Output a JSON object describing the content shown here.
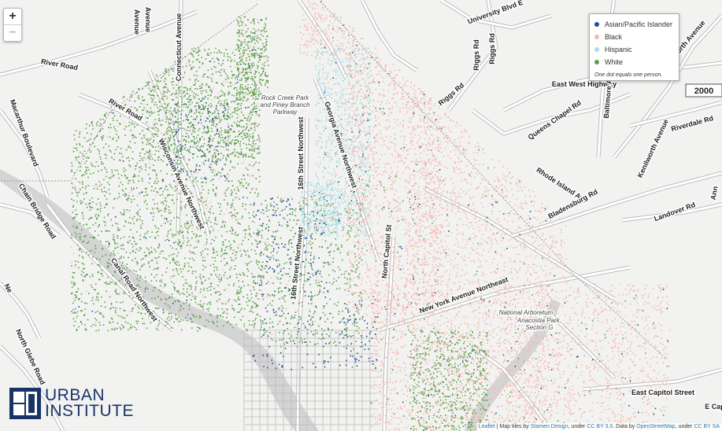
{
  "map": {
    "colors": {
      "land": "#f2f2f0",
      "water": "#d4d4d4",
      "road": "#ffffff",
      "road_casing": "#bdbdbd",
      "major_road": "#ffffff"
    },
    "roads": [
      {
        "text": "River Road",
        "rot": 10
      },
      {
        "text": "River Road",
        "rot": 30
      },
      {
        "text": "Connecticut Avenue",
        "rot": -90
      },
      {
        "text": "Macarthur Boulevard",
        "rot": 70
      },
      {
        "text": "Wisconsin Avenue Northwest",
        "rot": 65
      },
      {
        "text": "Chain Bridge Road",
        "rot": 58
      },
      {
        "text": "Canal Road Northwest",
        "rot": 55
      },
      {
        "text": "16th Street Northwest",
        "rot": -90
      },
      {
        "text": "16th Street Northwest",
        "rot": -84
      },
      {
        "text": "Georgia Avenue Northwest",
        "rot": 72
      },
      {
        "text": "North Capitol St",
        "rot": -85
      },
      {
        "text": "New York Avenue Northeast",
        "rot": -20
      },
      {
        "text": "Rhode Island Ave",
        "rot": 33
      },
      {
        "text": "Bladensburg Rd",
        "rot": -28
      },
      {
        "text": "Riggs Rd",
        "rot": -40
      },
      {
        "text": "Riggs Rd",
        "rot": -90
      },
      {
        "text": "Riggs Rd",
        "rot": -90
      },
      {
        "text": "University Blvd E",
        "rot": -20
      },
      {
        "text": "East West Highway",
        "rot": 0
      },
      {
        "text": "Queens Chapel Rd",
        "rot": -35
      },
      {
        "text": "Baltimore Avenue",
        "rot": -85
      },
      {
        "text": "Kenilworth Avenue",
        "rot": -50
      },
      {
        "text": "Kenilworth Avenue",
        "rot": -65
      },
      {
        "text": "Riverdale Rd",
        "rot": -15
      },
      {
        "text": "Landover Rd",
        "rot": -20
      },
      {
        "text": "East Capitol Street",
        "rot": 0
      },
      {
        "text": "North Glebe Road",
        "rot": 65
      },
      {
        "text": "Avenue",
        "rot": 90
      },
      {
        "text": "Avenue",
        "rot": 90
      },
      {
        "text": "Ann",
        "rot": -80
      },
      {
        "text": "Ne",
        "rot": 60
      },
      {
        "text": "E Cap",
        "rot": 0
      }
    ],
    "places": [
      {
        "lines": [
          "Rock Creek Park",
          "and Piney Branch",
          "Parkway"
        ]
      },
      {
        "lines": [
          "National Arboretum"
        ]
      },
      {
        "lines": [
          "Anacostia Park,",
          "Section G"
        ]
      }
    ],
    "shield": "2000"
  },
  "zoom": {
    "in": "+",
    "out": "−"
  },
  "legend": {
    "items": [
      {
        "label": "Asian/Pacific Islander",
        "color": "#1f4e9a"
      },
      {
        "label": "Black",
        "color": "#f5b8b1"
      },
      {
        "label": "Hispanic",
        "color": "#a6dde6"
      },
      {
        "label": "White",
        "color": "#5aa04a"
      }
    ],
    "note": "One dot equals one person."
  },
  "logo": {
    "line1": "URBAN",
    "line2": "INSTITUTE",
    "color": "#1a3366"
  },
  "attribution": {
    "leaflet": "Leaflet",
    "text1": " | Map tiles by ",
    "stamen": "Stamen Design",
    "text2": ", under ",
    "ccby": "CC BY 3.0",
    "text3": ". Data by ",
    "osm": "OpenStreetMap",
    "text4": ", under ",
    "ccbysa": "CC BY SA"
  }
}
